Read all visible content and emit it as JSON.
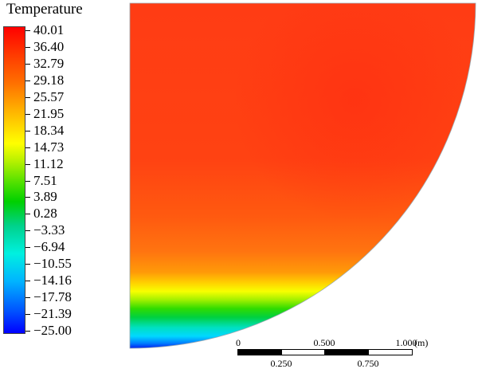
{
  "legend": {
    "title": "Temperature",
    "labels": [
      "40.01",
      "36.40",
      "32.79",
      "29.18",
      "25.57",
      "21.95",
      "18.34",
      "14.73",
      "11.12",
      "7.51",
      "3.89",
      "0.28",
      "−3.33",
      "−6.94",
      "−10.55",
      "−14.16",
      "−17.78",
      "−21.39",
      "−25.00"
    ],
    "min": -25.0,
    "max": 40.01
  },
  "scale_bar": {
    "top_labels": [
      "0",
      "0.500",
      "1.000"
    ],
    "unit": "(m)",
    "bottom_labels": [
      "0.250",
      "0.750"
    ]
  },
  "colors": {
    "hot": "#ff3a12",
    "warm": "#ff8a10",
    "mid": "#ffff00",
    "green": "#00d000",
    "cyan": "#00f0e0",
    "cold": "#0000ff"
  }
}
